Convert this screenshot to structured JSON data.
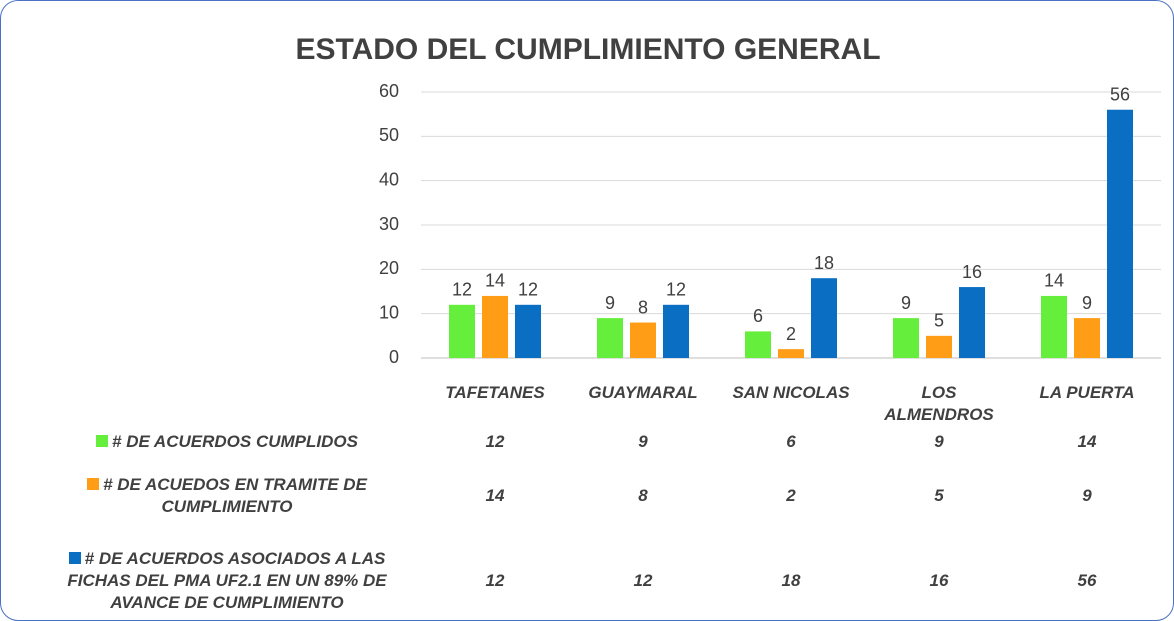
{
  "chart_data": {
    "type": "bar",
    "title": "ESTADO DEL CUMPLIMIENTO GENERAL",
    "categories": [
      "TAFETANES",
      "GUAYMARAL",
      "SAN NICOLAS",
      "LOS ALMENDROS",
      "LA PUERTA"
    ],
    "series": [
      {
        "name": "# DE ACUERDOS CUMPLIDOS",
        "color": "#66ee3c",
        "values": [
          12,
          9,
          6,
          9,
          14
        ]
      },
      {
        "name": "# DE ACUEDOS EN TRAMITE DE CUMPLIMIENTO",
        "color": "#ff9e16",
        "values": [
          14,
          8,
          2,
          5,
          9
        ]
      },
      {
        "name": "# DE ACUERDOS ASOCIADOS A LAS FICHAS DEL PMA UF2.1 EN UN 89% DE AVANCE DE CUMPLIMIENTO",
        "color": "#0a6fc2",
        "values": [
          12,
          12,
          18,
          16,
          56
        ]
      }
    ],
    "ylim": [
      0,
      60
    ],
    "yticks": [
      0,
      10,
      20,
      30,
      40,
      50,
      60
    ],
    "grid": true,
    "data_table": true
  }
}
